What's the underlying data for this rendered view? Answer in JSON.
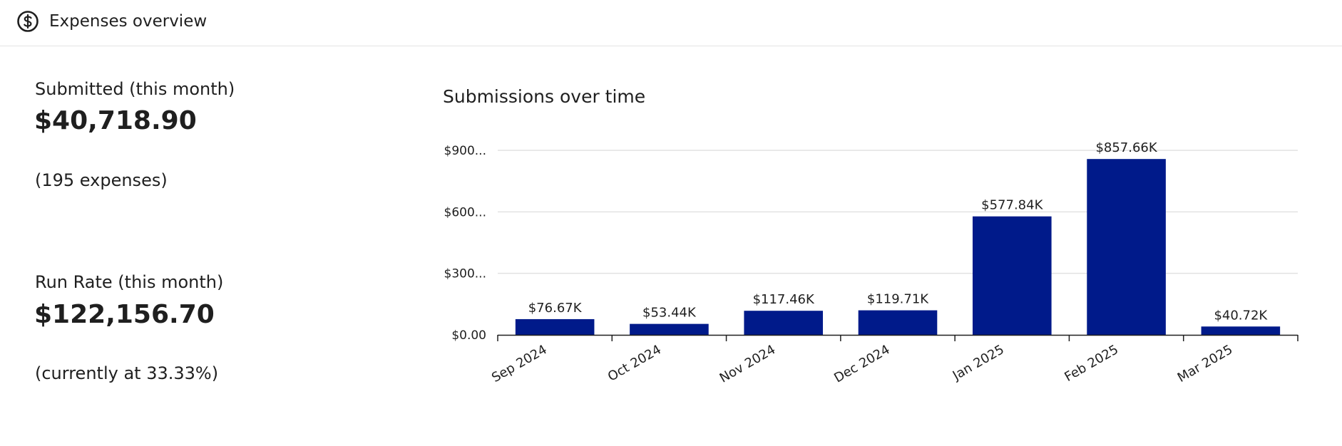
{
  "header": {
    "title": "Expenses overview",
    "icon": "dollar-circle-icon"
  },
  "metrics": {
    "submitted": {
      "label": "Submitted (this month)",
      "value": "$40,718.90",
      "note": "(195 expenses)"
    },
    "run_rate": {
      "label": "Run Rate (this month)",
      "value": "$122,156.70",
      "note": "(currently at 33.33%)"
    }
  },
  "chart_data": {
    "type": "bar",
    "title": "Submissions over time",
    "categories": [
      "Sep 2024",
      "Oct 2024",
      "Nov 2024",
      "Dec 2024",
      "Jan 2025",
      "Feb 2025",
      "Mar 2025"
    ],
    "values": [
      76670,
      53440,
      117460,
      119710,
      577840,
      857660,
      40720
    ],
    "data_labels": [
      "$76.67K",
      "$53.44K",
      "$117.46K",
      "$119.71K",
      "$577.84K",
      "$857.66K",
      "$40.72K"
    ],
    "yticks": [
      0,
      300000,
      600000,
      900000
    ],
    "ytick_labels": [
      "$0.00",
      "$300...",
      "$600...",
      "$900..."
    ],
    "ylim": [
      0,
      900000
    ],
    "xlabel": "",
    "ylabel": "",
    "grid": true,
    "bar_color": "#001a8a"
  }
}
